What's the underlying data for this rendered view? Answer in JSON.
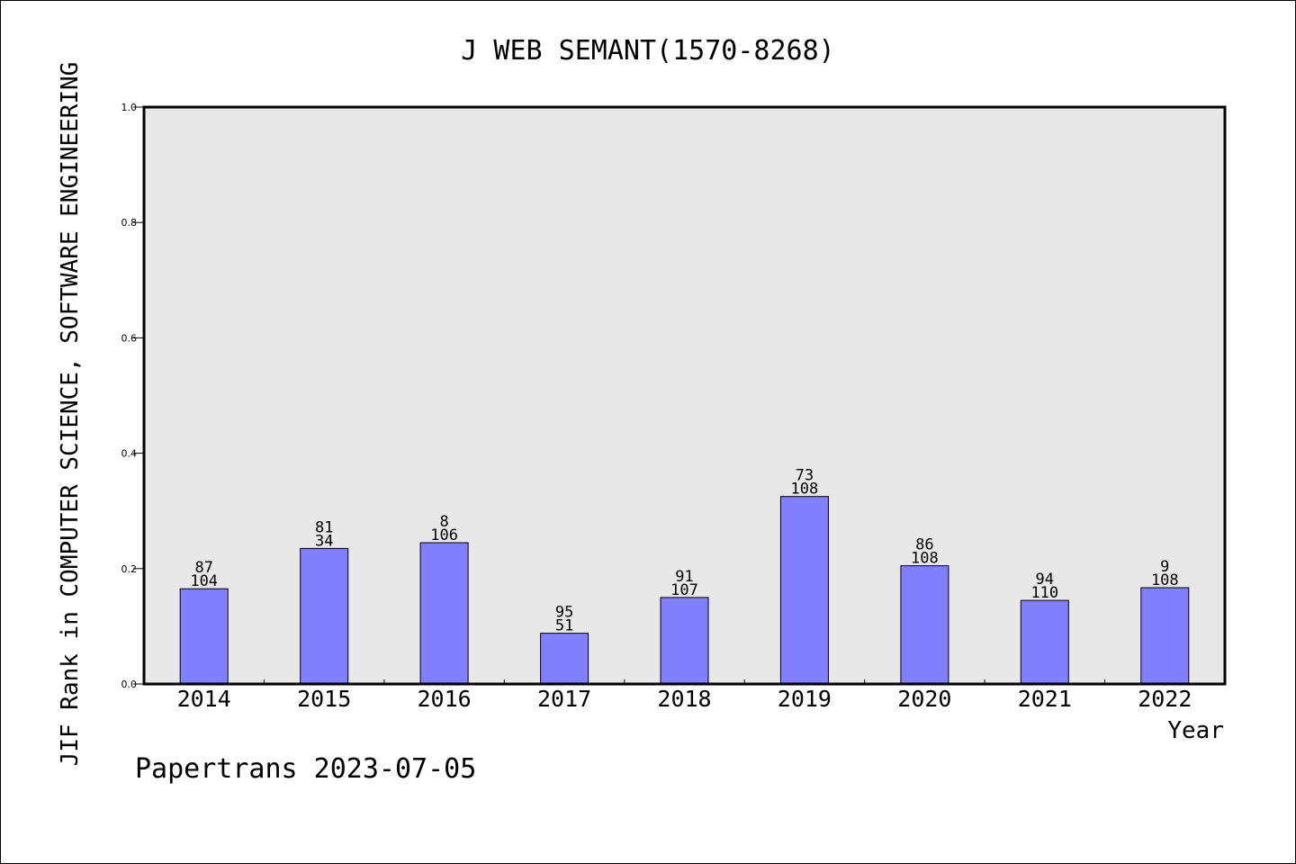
{
  "chart_data": {
    "type": "bar",
    "title": "J WEB SEMANT(1570-8268)",
    "xlabel": "Year",
    "ylabel": "JIF Rank in COMPUTER SCIENCE, SOFTWARE ENGINEERING",
    "categories": [
      "2014",
      "2015",
      "2016",
      "2017",
      "2018",
      "2019",
      "2020",
      "2021",
      "2022"
    ],
    "values": [
      0.165,
      0.235,
      0.245,
      0.088,
      0.15,
      0.325,
      0.205,
      0.145,
      0.167
    ],
    "rank_labels": [
      "87",
      "81",
      "8",
      "95",
      "91",
      "73",
      "86",
      "94",
      "9"
    ],
    "total_labels": [
      "104",
      "34",
      "106",
      "51",
      "107",
      "108",
      "108",
      "110",
      "108"
    ],
    "ylim": [
      0,
      1.0
    ],
    "yticks": [
      "0.0",
      "0.2",
      "0.4",
      "0.6",
      "0.8",
      "1.0"
    ],
    "grid": false,
    "legend": "none",
    "colors": {
      "bar": "#8080ff",
      "plot_bg": "#e8e8e8",
      "axis": "#000000"
    }
  },
  "footer": {
    "watermark": "Papertrans 2023-07-05"
  }
}
